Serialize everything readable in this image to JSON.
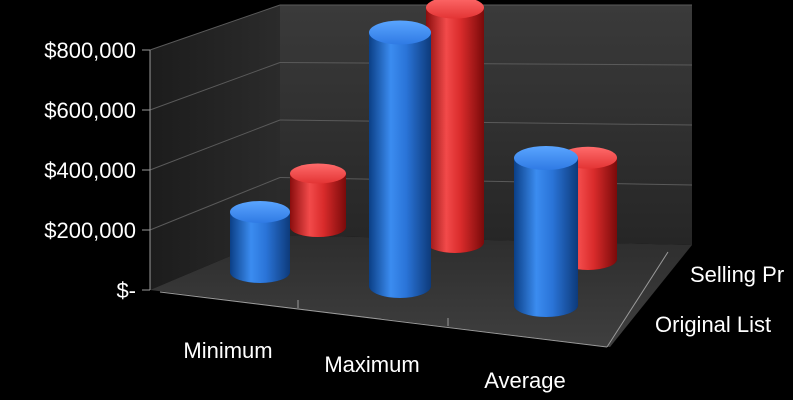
{
  "chart_data": {
    "type": "bar",
    "style": "3d-cylinder",
    "categories": [
      "Minimum",
      "Maximum",
      "Average"
    ],
    "series": [
      {
        "name": "Original List",
        "color": "#1f6fd6",
        "values": [
          150000,
          780000,
          420000
        ]
      },
      {
        "name": "Selling Pr",
        "color": "#e03131",
        "values": [
          145000,
          750000,
          300000
        ]
      }
    ],
    "y_tick_labels": [
      "$800,000",
      "$600,000",
      "$400,000",
      "$200,000",
      "$-"
    ],
    "y_ticks": [
      800000,
      600000,
      400000,
      200000,
      0
    ],
    "ylim": [
      0,
      800000
    ],
    "grid": true,
    "legend": "depth-axis-right"
  }
}
